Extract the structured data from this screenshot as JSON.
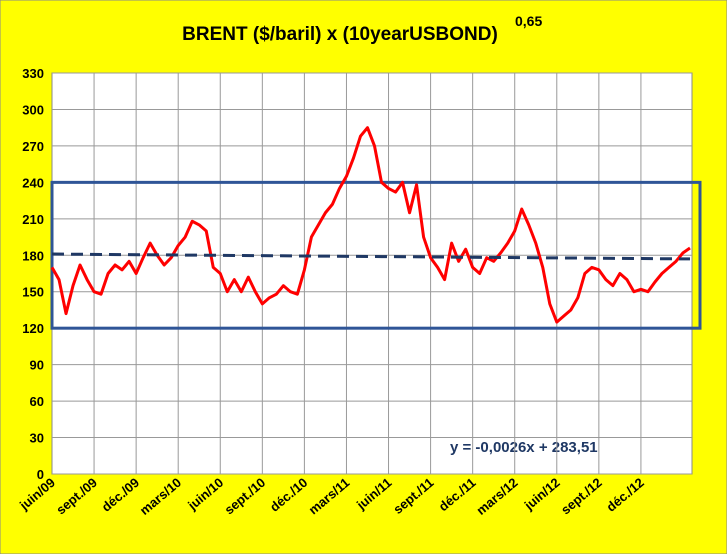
{
  "chart_data": {
    "type": "line",
    "title": "BRENT ($/baril) x (10yearUSBOND)",
    "title_superscript": "0,65",
    "annotation": "y = -0,0026x + 283,51",
    "categories": [
      "juin/09",
      null,
      null,
      null,
      null,
      null,
      "sept./09",
      null,
      null,
      null,
      null,
      null,
      "déc./09",
      null,
      null,
      null,
      null,
      null,
      "mars/10",
      null,
      null,
      null,
      null,
      null,
      "juin/10",
      null,
      null,
      null,
      null,
      null,
      "sept./10",
      null,
      null,
      null,
      null,
      null,
      "déc./10",
      null,
      null,
      null,
      null,
      null,
      "mars/11",
      null,
      null,
      null,
      null,
      null,
      "juin/11",
      null,
      null,
      null,
      null,
      null,
      "sept./11",
      null,
      null,
      null,
      null,
      null,
      "déc./11",
      null,
      null,
      null,
      null,
      null,
      "mars/12",
      null,
      null,
      null,
      null,
      null,
      "juin/12",
      null,
      null,
      null,
      null,
      null,
      "sept./12",
      null,
      null,
      null,
      null,
      null,
      "déc./12",
      null,
      null,
      null,
      null,
      null,
      null,
      null
    ],
    "series": [
      {
        "color": "#ff0000",
        "values": [
          170,
          160,
          132,
          155,
          172,
          160,
          150,
          148,
          165,
          172,
          168,
          175,
          165,
          178,
          190,
          180,
          172,
          178,
          188,
          195,
          208,
          205,
          200,
          170,
          165,
          150,
          160,
          150,
          162,
          150,
          140,
          145,
          148,
          155,
          150,
          148,
          168,
          195,
          205,
          215,
          222,
          235,
          245,
          260,
          278,
          285,
          270,
          240,
          235,
          232,
          240,
          215,
          238,
          195,
          178,
          170,
          160,
          190,
          175,
          185,
          170,
          165,
          178,
          175,
          182,
          190,
          200,
          218,
          205,
          190,
          170,
          140,
          125,
          130,
          135,
          145,
          165,
          170,
          168,
          160,
          155,
          165,
          160,
          150,
          152,
          150,
          158,
          165,
          170,
          175,
          182,
          186
        ]
      }
    ],
    "trendline": {
      "color": "#1f3864",
      "start": 181,
      "end": 177
    },
    "band": {
      "color": "#2f5597",
      "values": [
        120,
        240
      ]
    },
    "ylim": [
      0,
      330
    ],
    "yticks": [
      0,
      30,
      60,
      90,
      120,
      150,
      180,
      210,
      240,
      270,
      300,
      330
    ],
    "grid": true
  }
}
